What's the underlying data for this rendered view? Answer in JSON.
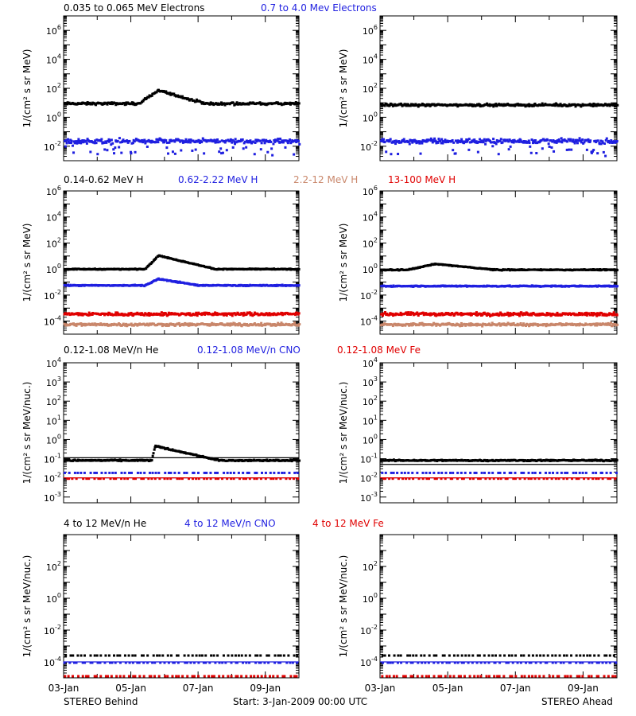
{
  "colors": {
    "black": "#000000",
    "blue": "#1f1fe0",
    "tan": "#c9876b",
    "red": "#e00000"
  },
  "footer": {
    "left": "STEREO Behind",
    "center": "Start:  3-Jan-2009 00:00 UTC",
    "right": "STEREO Ahead"
  },
  "x_ticks": [
    "03-Jan",
    "05-Jan",
    "07-Jan",
    "09-Jan"
  ],
  "chart_data": [
    {
      "type": "scatter",
      "row": "electrons",
      "legend": [
        {
          "label": "0.035 to 0.065 MeV Electrons",
          "color": "#000000"
        },
        {
          "label": "0.7 to 4.0 Mev Electrons",
          "color": "#1f1fe0"
        }
      ],
      "ylabel": "1/(cm² s sr MeV)",
      "ylog_range": [
        -3,
        7
      ],
      "yticks": [
        -2,
        0,
        2,
        4,
        6
      ],
      "panels": [
        {
          "name": "STEREO Behind",
          "series": [
            {
              "color": "#000000",
              "base_log": 1.0,
              "scatter": 0.12,
              "event": {
                "start_day": 2.2,
                "peak_day": 2.8,
                "peak_log": 1.9,
                "decay_day": 4.2
              }
            },
            {
              "color": "#1f1fe0",
              "base_log": -1.6,
              "scatter": 0.25,
              "dip": true
            }
          ]
        },
        {
          "name": "STEREO Ahead",
          "series": [
            {
              "color": "#000000",
              "base_log": 0.9,
              "scatter": 0.12
            },
            {
              "color": "#1f1fe0",
              "base_log": -1.6,
              "scatter": 0.25,
              "dip": true
            }
          ]
        }
      ]
    },
    {
      "type": "scatter",
      "row": "protons",
      "legend": [
        {
          "label": "0.14-0.62 MeV H",
          "color": "#000000"
        },
        {
          "label": "0.62-2.22 MeV H",
          "color": "#1f1fe0"
        },
        {
          "label": "2.2-12 MeV H",
          "color": "#c9876b"
        },
        {
          "label": "13-100 MeV H",
          "color": "#e00000"
        }
      ],
      "ylabel": "1/(cm² s sr MeV)",
      "ylog_range": [
        -5,
        6
      ],
      "yticks": [
        -4,
        -2,
        0,
        2,
        4,
        6
      ],
      "panels": [
        {
          "name": "STEREO Behind",
          "series": [
            {
              "color": "#000000",
              "base_log": 0.05,
              "scatter": 0.05,
              "event": {
                "start_day": 2.4,
                "peak_day": 2.8,
                "peak_log": 1.1,
                "decay_day": 4.5
              }
            },
            {
              "color": "#1f1fe0",
              "base_log": -1.2,
              "scatter": 0.06,
              "event": {
                "start_day": 2.4,
                "peak_day": 2.8,
                "peak_log": -0.7,
                "decay_day": 4.0
              }
            },
            {
              "color": "#c9876b",
              "base_log": -4.2,
              "scatter": 0.15
            },
            {
              "color": "#e00000",
              "base_log": -3.4,
              "scatter": 0.18
            }
          ]
        },
        {
          "name": "STEREO Ahead",
          "series": [
            {
              "color": "#000000",
              "base_log": 0.0,
              "scatter": 0.05,
              "event": {
                "start_day": 0.8,
                "peak_day": 1.6,
                "peak_log": 0.45,
                "decay_day": 3.4
              }
            },
            {
              "color": "#1f1fe0",
              "base_log": -1.25,
              "scatter": 0.06
            },
            {
              "color": "#c9876b",
              "base_log": -4.2,
              "scatter": 0.15
            },
            {
              "color": "#e00000",
              "base_log": -3.4,
              "scatter": 0.18
            }
          ]
        }
      ]
    },
    {
      "type": "scatter",
      "row": "heavy_low",
      "legend": [
        {
          "label": "0.12-1.08 MeV/n He",
          "color": "#000000"
        },
        {
          "label": "0.12-1.08 MeV/n CNO",
          "color": "#1f1fe0"
        },
        {
          "label": "0.12-1.08 MeV Fe",
          "color": "#e00000"
        }
      ],
      "ylabel": "1/(cm² s sr MeV/nuc.)",
      "ylog_range": [
        -3.3,
        4
      ],
      "yticks": [
        -3,
        -2,
        -1,
        0,
        1,
        2,
        3,
        4
      ],
      "panels": [
        {
          "name": "STEREO Behind",
          "series": [
            {
              "color": "#000000",
              "base_log": -1.05,
              "scatter": 0.05,
              "line_log": -0.95,
              "event": {
                "start_day": 2.6,
                "peak_day": 2.7,
                "peak_log": -0.3,
                "decay_day": 4.6
              }
            },
            {
              "color": "#1f1fe0",
              "base_log": -1.7,
              "scatter": 0.0,
              "line_log": -2.0
            },
            {
              "color": "#e00000",
              "base_log": -2.0,
              "scatter": 0.0,
              "line_log": -2.0
            }
          ]
        },
        {
          "name": "STEREO Ahead",
          "series": [
            {
              "color": "#000000",
              "base_log": -1.05,
              "scatter": 0.05,
              "line_log": -1.3
            },
            {
              "color": "#1f1fe0",
              "base_log": -1.7,
              "scatter": 0.0,
              "line_log": -2.0
            },
            {
              "color": "#e00000",
              "base_log": -2.0,
              "scatter": 0.0,
              "line_log": -2.0
            }
          ]
        }
      ]
    },
    {
      "type": "scatter",
      "row": "heavy_high",
      "legend": [
        {
          "label": "4 to 12 MeV/n He",
          "color": "#000000"
        },
        {
          "label": "4 to 12 MeV/n CNO",
          "color": "#1f1fe0"
        },
        {
          "label": "4 to 12 MeV Fe",
          "color": "#e00000"
        }
      ],
      "ylabel": "1/(cm² s sr MeV/nuc.)",
      "ylog_range": [
        -5,
        4
      ],
      "yticks": [
        -4,
        -2,
        0,
        2
      ],
      "panels": [
        {
          "name": "STEREO Behind",
          "series": [
            {
              "color": "#000000",
              "base_log": -3.55,
              "scatter": 0.0
            },
            {
              "color": "#1f1fe0",
              "base_log": -4.0,
              "scatter": 0.0,
              "line_log": -4.0
            },
            {
              "color": "#e00000",
              "base_log": -4.85,
              "scatter": 0.0
            }
          ]
        },
        {
          "name": "STEREO Ahead",
          "series": [
            {
              "color": "#000000",
              "base_log": -3.55,
              "scatter": 0.0
            },
            {
              "color": "#1f1fe0",
              "base_log": -4.0,
              "scatter": 0.0,
              "line_log": -4.0
            },
            {
              "color": "#e00000",
              "base_log": -4.85,
              "scatter": 0.0
            }
          ]
        }
      ]
    }
  ]
}
